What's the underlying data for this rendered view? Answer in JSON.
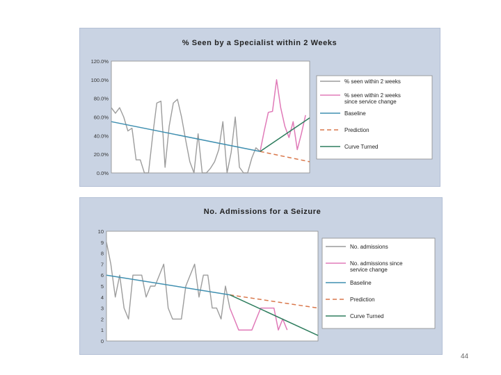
{
  "page": {
    "number": "44"
  },
  "colors": {
    "panel_bg": "#c9d3e3",
    "plot_bg": "#ffffff",
    "series_grey": "#9c9c9c",
    "series_pink": "#e07ab8",
    "baseline": "#3f8fb0",
    "prediction": "#d9774a",
    "curve_turned": "#2e7d5e"
  },
  "chart_data": [
    {
      "type": "line",
      "title": "% Seen by a Specialist within 2 Weeks",
      "ylim": [
        0,
        120
      ],
      "y_ticks": [
        {
          "v": 0,
          "label": "0.0%"
        },
        {
          "v": 20,
          "label": "20.0%"
        },
        {
          "v": 40,
          "label": "40.0%"
        },
        {
          "v": 60,
          "label": "60.0%"
        },
        {
          "v": 80,
          "label": "80.0%"
        },
        {
          "v": 100,
          "label": "100.0%"
        },
        {
          "v": 120,
          "label": "120.0%"
        }
      ],
      "n_points": 48,
      "grid": false,
      "legend_position": "right",
      "series": [
        {
          "name": "% seen within 2 weeks",
          "color": "#9c9c9c",
          "dash": "",
          "x": [
            0,
            1,
            2,
            3,
            4,
            5,
            6,
            7,
            8,
            9,
            10,
            11,
            12,
            13,
            14,
            15,
            16,
            17,
            18,
            19,
            20,
            21,
            22,
            23,
            24,
            25,
            26,
            27,
            28,
            29,
            30,
            31,
            32,
            33,
            34,
            35,
            36
          ],
          "values": [
            70,
            64,
            70,
            60,
            45,
            48,
            14,
            14,
            0,
            0,
            40,
            75,
            77,
            6,
            50,
            75,
            79,
            60,
            35,
            12,
            0,
            42,
            0,
            0,
            5,
            12,
            25,
            55,
            0,
            22,
            60,
            6,
            0,
            0,
            16,
            27,
            23
          ]
        },
        {
          "name": "% seen within 2 weeks since service change",
          "color": "#e07ab8",
          "dash": "",
          "x": [
            36,
            37,
            38,
            39,
            40,
            41,
            42,
            43,
            44,
            45,
            46,
            47
          ],
          "values": [
            23,
            45,
            65,
            66,
            100,
            70,
            50,
            38,
            55,
            25,
            42,
            62
          ]
        },
        {
          "name": "Baseline",
          "color": "#3f8fb0",
          "dash": "",
          "x": [
            0,
            36
          ],
          "values": [
            55,
            23
          ]
        },
        {
          "name": "Prediction",
          "color": "#d9774a",
          "dash": "6,4",
          "x": [
            36,
            48
          ],
          "values": [
            23,
            12
          ]
        },
        {
          "name": "Curve Turned",
          "color": "#2e7d5e",
          "dash": "",
          "x": [
            36,
            48
          ],
          "values": [
            23,
            59
          ]
        }
      ]
    },
    {
      "type": "line",
      "title": "No. Admissions for a Seizure",
      "ylim": [
        0,
        10
      ],
      "y_ticks": [
        {
          "v": 0,
          "label": "0"
        },
        {
          "v": 1,
          "label": "1"
        },
        {
          "v": 2,
          "label": "2"
        },
        {
          "v": 3,
          "label": "3"
        },
        {
          "v": 4,
          "label": "4"
        },
        {
          "v": 5,
          "label": "5"
        },
        {
          "v": 6,
          "label": "6"
        },
        {
          "v": 7,
          "label": "7"
        },
        {
          "v": 8,
          "label": "8"
        },
        {
          "v": 9,
          "label": "9"
        },
        {
          "v": 10,
          "label": "10"
        }
      ],
      "n_points": 48,
      "grid": false,
      "legend_position": "right",
      "series": [
        {
          "name": "No. admissions",
          "color": "#9c9c9c",
          "dash": "",
          "x": [
            0,
            1,
            2,
            3,
            4,
            5,
            6,
            7,
            8,
            9,
            10,
            11,
            12,
            13,
            14,
            15,
            16,
            17,
            18,
            19,
            20,
            21,
            22,
            23,
            24,
            25,
            26,
            27,
            28
          ],
          "values": [
            9,
            7,
            4,
            6,
            3,
            2,
            6,
            6,
            6,
            4,
            5,
            5,
            6,
            7,
            3,
            2,
            2,
            2,
            5,
            6,
            7,
            4,
            6,
            6,
            3,
            3,
            2,
            5,
            3
          ]
        },
        {
          "name": "No. admissions since service change",
          "color": "#e07ab8",
          "dash": "",
          "x": [
            28,
            29,
            30,
            31,
            32,
            33,
            34,
            35,
            36,
            37,
            38,
            39,
            40,
            41
          ],
          "values": [
            3,
            2,
            1,
            1,
            1,
            1,
            2,
            3,
            3,
            3,
            3,
            1,
            2,
            1
          ]
        },
        {
          "name": "Baseline",
          "color": "#3f8fb0",
          "dash": "",
          "x": [
            0,
            28
          ],
          "values": [
            6,
            4.2
          ]
        },
        {
          "name": "Prediction",
          "color": "#d9774a",
          "dash": "6,4",
          "x": [
            28,
            48
          ],
          "values": [
            4.2,
            3
          ]
        },
        {
          "name": "Curve Turned",
          "color": "#2e7d5e",
          "dash": "",
          "x": [
            28,
            48
          ],
          "values": [
            4.2,
            0.5
          ]
        }
      ]
    }
  ],
  "legends": [
    {
      "items": [
        {
          "label": "% seen within 2 weeks",
          "color": "#9c9c9c",
          "dash": ""
        },
        {
          "label": "% seen within 2 weeks\nsince service change",
          "color": "#e07ab8",
          "dash": ""
        },
        {
          "label": "Baseline",
          "color": "#3f8fb0",
          "dash": ""
        },
        {
          "label": "Prediction",
          "color": "#d9774a",
          "dash": "6,4"
        },
        {
          "label": "Curve Turned",
          "color": "#2e7d5e",
          "dash": ""
        }
      ]
    },
    {
      "items": [
        {
          "label": "No. admissions",
          "color": "#9c9c9c",
          "dash": ""
        },
        {
          "label": "No. admissions since\nservice change",
          "color": "#e07ab8",
          "dash": ""
        },
        {
          "label": "Baseline",
          "color": "#3f8fb0",
          "dash": ""
        },
        {
          "label": "Prediction",
          "color": "#d9774a",
          "dash": "6,4"
        },
        {
          "label": "Curve Turned",
          "color": "#2e7d5e",
          "dash": ""
        }
      ]
    }
  ]
}
